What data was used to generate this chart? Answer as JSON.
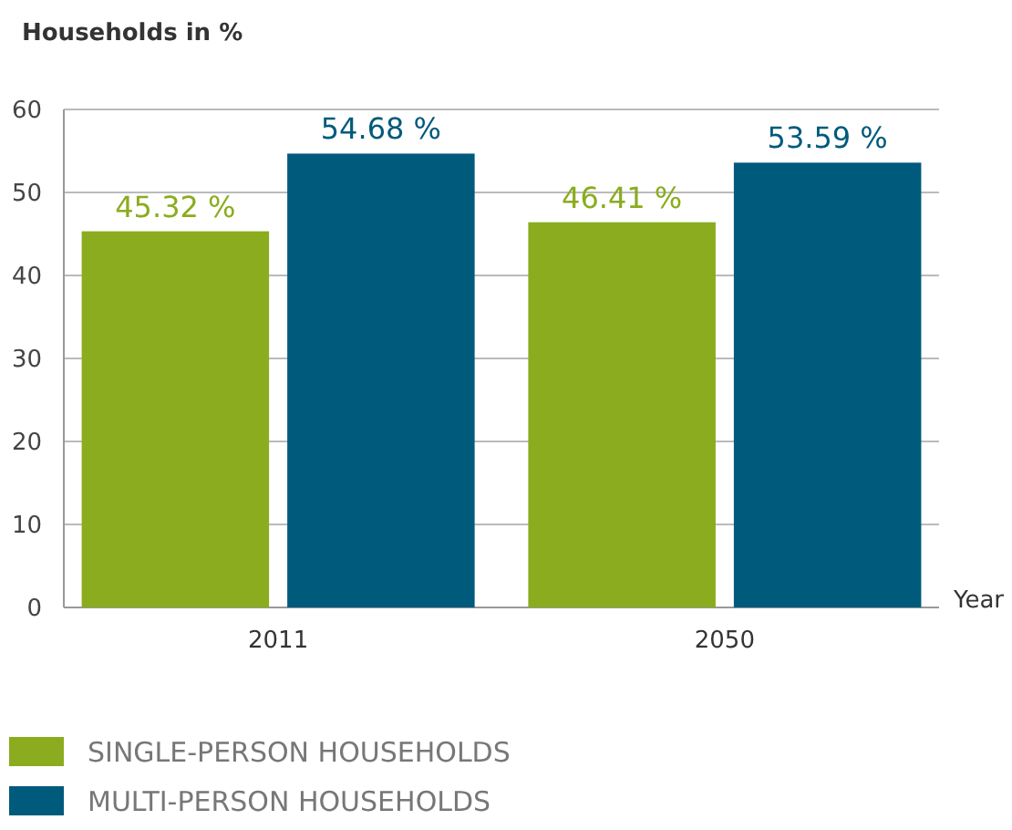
{
  "chart_data": {
    "type": "bar",
    "title": "Households in %",
    "xlabel": "Year",
    "categories": [
      "2011",
      "2050"
    ],
    "series": [
      {
        "name": "SINGLE-PERSON HOUSEHOLDS",
        "color": "#8aac1e",
        "values": [
          45.32,
          46.41
        ],
        "value_labels": [
          "45.32 %",
          "46.41 %"
        ]
      },
      {
        "name": "MULTI-PERSON HOUSEHOLDS",
        "color": "#005a7c",
        "values": [
          54.68,
          53.59
        ],
        "value_labels": [
          "54.68 %",
          "53.59 %"
        ]
      }
    ],
    "ylim": [
      0,
      60
    ],
    "yticks": [
      0,
      10,
      20,
      30,
      40,
      50,
      60
    ],
    "grid": "y",
    "legend": "bottom left"
  }
}
